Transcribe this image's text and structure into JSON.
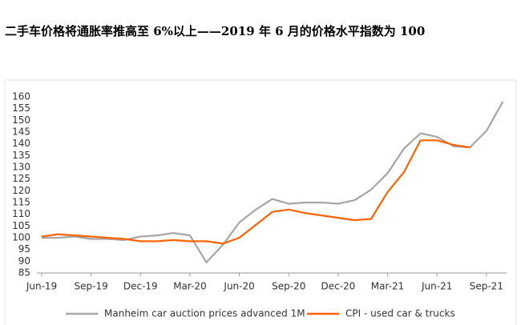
{
  "chart_data": {
    "type": "line",
    "title": "二手车价格将通胀率推高至 6%以上——2019 年 6 月的价格水平指数为 100",
    "categories": [
      "Jun-19",
      null,
      null,
      "Sep-19",
      null,
      null,
      "Dec-19",
      null,
      null,
      "Mar-20",
      null,
      null,
      "Jun-20",
      null,
      null,
      "Sep-20",
      null,
      null,
      "Dec-20",
      null,
      null,
      "Mar-21",
      null,
      null,
      "Jun-21",
      null,
      null,
      "Sep-21",
      null
    ],
    "series": [
      {
        "name": "Manheim car auction prices advanced 1M",
        "color": "#a6a6a6",
        "values": [
          100,
          100,
          100.5,
          99.5,
          99.5,
          99,
          100.5,
          101,
          102,
          101,
          89.5,
          97,
          106.5,
          112,
          116.5,
          114.5,
          115,
          115,
          114.5,
          116,
          120.5,
          127.5,
          138,
          144.5,
          143,
          139,
          138.5,
          145.5,
          158
        ]
      },
      {
        "name": "CPI - used car & trucks",
        "color": "#ff6200",
        "values": [
          100.5,
          101.5,
          101,
          100.5,
          100,
          99.5,
          98.5,
          98.5,
          99,
          98.5,
          98.5,
          97.5,
          100,
          105.5,
          111,
          112,
          110.5,
          109.5,
          108.5,
          107.5,
          108,
          119.5,
          128,
          141.5,
          141.5,
          139.5,
          138.5,
          null,
          null
        ]
      }
    ],
    "ylim": [
      85,
      160
    ],
    "yticks": [
      85,
      90,
      95,
      100,
      105,
      110,
      115,
      120,
      125,
      130,
      135,
      140,
      145,
      150,
      155,
      160
    ]
  }
}
